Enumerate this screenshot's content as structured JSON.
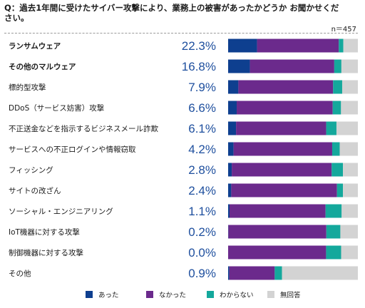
{
  "header": {
    "question": "Q：過去1年間に受けたサイバー攻撃により、業務上の被害があったかどうか お聞かせください。",
    "n": "n＝457"
  },
  "colors": {
    "yes": "#0e3f8f",
    "no": "#6b2a8c",
    "unknown": "#14a89c",
    "noanswer": "#d3d3d3",
    "pct": "#1e4f9e"
  },
  "chart_data": {
    "type": "bar",
    "orientation": "horizontal",
    "stacked": true,
    "normalized": true,
    "categories": [
      "ランサムウェア",
      "その他のマルウェア",
      "標的型攻撃",
      "DDoS（サービス妨害）攻撃",
      "不正送金などを指示するビジネスメール詐欺",
      "サービスへの不正ログインや情報窃取",
      "フィッシング",
      "サイトの改ざん",
      "ソーシャル・エンジニアリング",
      "IoT機器に対する攻撃",
      "制御機器に対する攻撃",
      "その他"
    ],
    "bold_categories": [
      0,
      1
    ],
    "pct_labels": [
      "22.3%",
      "16.8%",
      "7.9%",
      "6.6%",
      "6.1%",
      "4.2%",
      "2.8%",
      "2.4%",
      "1.1%",
      "0.2%",
      "0.0%",
      "0.9%"
    ],
    "series": [
      {
        "name": "あった",
        "values": [
          22.3,
          16.8,
          7.9,
          6.6,
          6.1,
          4.2,
          2.8,
          2.4,
          1.1,
          0.2,
          0.0,
          0.9
        ]
      },
      {
        "name": "なかった",
        "values": [
          63.0,
          65.0,
          73.0,
          74.0,
          69.5,
          76.0,
          77.0,
          81.5,
          74.0,
          75.5,
          75.5,
          35.0
        ]
      },
      {
        "name": "わからない",
        "values": [
          3.5,
          5.5,
          7.0,
          6.4,
          7.9,
          5.8,
          8.7,
          4.6,
          12.4,
          10.8,
          11.6,
          5.6
        ]
      },
      {
        "name": "無回答",
        "values": [
          11.2,
          12.7,
          12.1,
          13.0,
          16.5,
          14.0,
          11.5,
          11.5,
          12.5,
          13.5,
          12.9,
          58.5
        ]
      }
    ],
    "xlim": [
      0,
      100
    ],
    "legend_position": "bottom"
  }
}
